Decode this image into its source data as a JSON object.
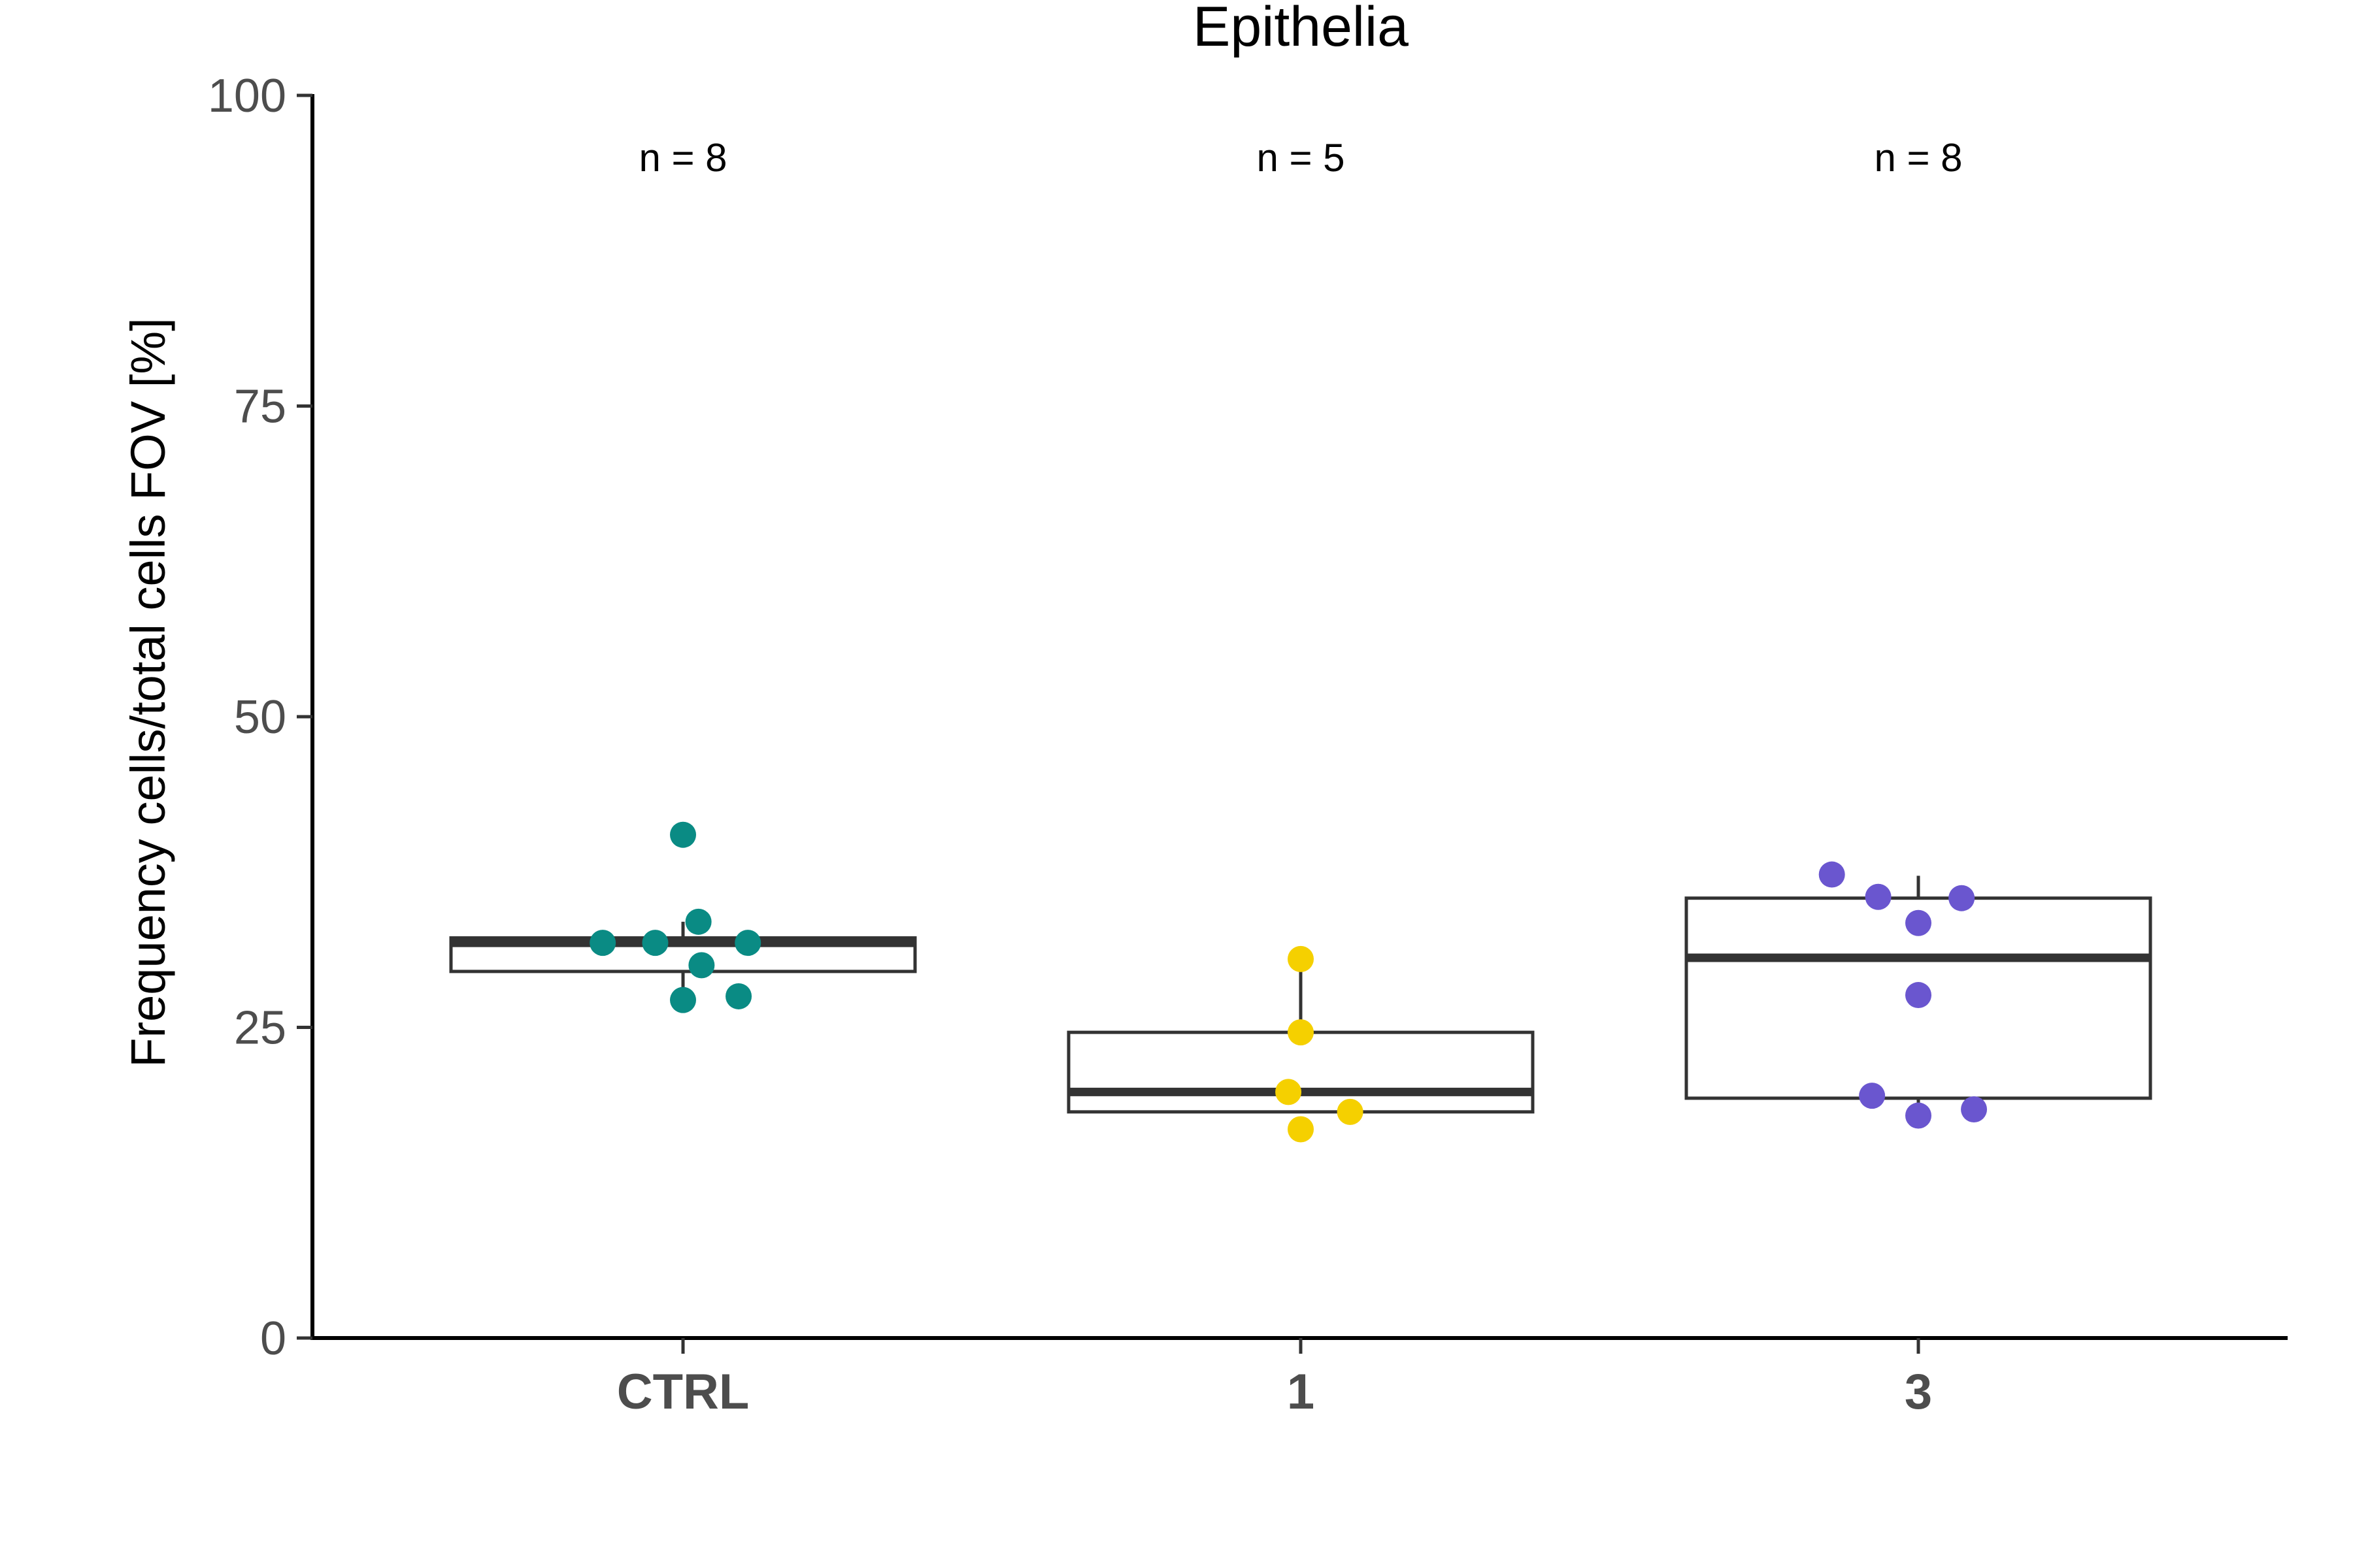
{
  "chart_data": {
    "type": "box",
    "title": "Epithelia",
    "xlabel": "",
    "ylabel": "Frequency cells/total cells FOV [%]",
    "ylim": [
      0,
      100
    ],
    "yticks": [
      0,
      25,
      50,
      75,
      100
    ],
    "grid": false,
    "legend": "none",
    "categories": [
      "CTRL",
      "1",
      "3"
    ],
    "groups": [
      {
        "category": "CTRL",
        "n_label": "n = 8",
        "color": "#0a8b84",
        "box": {
          "whisker_low": 27.2,
          "q1": 29.5,
          "median": 31.8,
          "q3": 32.2,
          "whisker_high": 33.5
        },
        "points": [
          {
            "x_offset": 0.0,
            "y": 40.5
          },
          {
            "x_offset": 0.025,
            "y": 33.5
          },
          {
            "x_offset": -0.13,
            "y": 31.8
          },
          {
            "x_offset": -0.045,
            "y": 31.8
          },
          {
            "x_offset": 0.105,
            "y": 31.8
          },
          {
            "x_offset": 0.03,
            "y": 30.0
          },
          {
            "x_offset": 0.0,
            "y": 27.2
          },
          {
            "x_offset": 0.09,
            "y": 27.5
          }
        ]
      },
      {
        "category": "1",
        "n_label": "n = 5",
        "color": "#f5d000",
        "box": {
          "whisker_low": 18.2,
          "q1": 18.2,
          "median": 19.8,
          "q3": 24.6,
          "whisker_high": 30.5
        },
        "points": [
          {
            "x_offset": 0.0,
            "y": 30.5
          },
          {
            "x_offset": 0.0,
            "y": 24.6
          },
          {
            "x_offset": -0.02,
            "y": 19.8
          },
          {
            "x_offset": 0.08,
            "y": 18.2
          },
          {
            "x_offset": 0.0,
            "y": 16.8
          }
        ]
      },
      {
        "category": "3",
        "n_label": "n = 8",
        "color": "#6a56cf",
        "box": {
          "whisker_low": 18.5,
          "q1": 19.3,
          "median": 30.6,
          "q3": 35.4,
          "whisker_high": 37.2
        },
        "points": [
          {
            "x_offset": -0.14,
            "y": 37.3
          },
          {
            "x_offset": -0.065,
            "y": 35.5
          },
          {
            "x_offset": 0.07,
            "y": 35.4
          },
          {
            "x_offset": 0.0,
            "y": 33.4
          },
          {
            "x_offset": 0.0,
            "y": 27.6
          },
          {
            "x_offset": -0.075,
            "y": 19.5
          },
          {
            "x_offset": 0.0,
            "y": 17.9
          },
          {
            "x_offset": 0.09,
            "y": 18.4
          }
        ]
      }
    ]
  }
}
